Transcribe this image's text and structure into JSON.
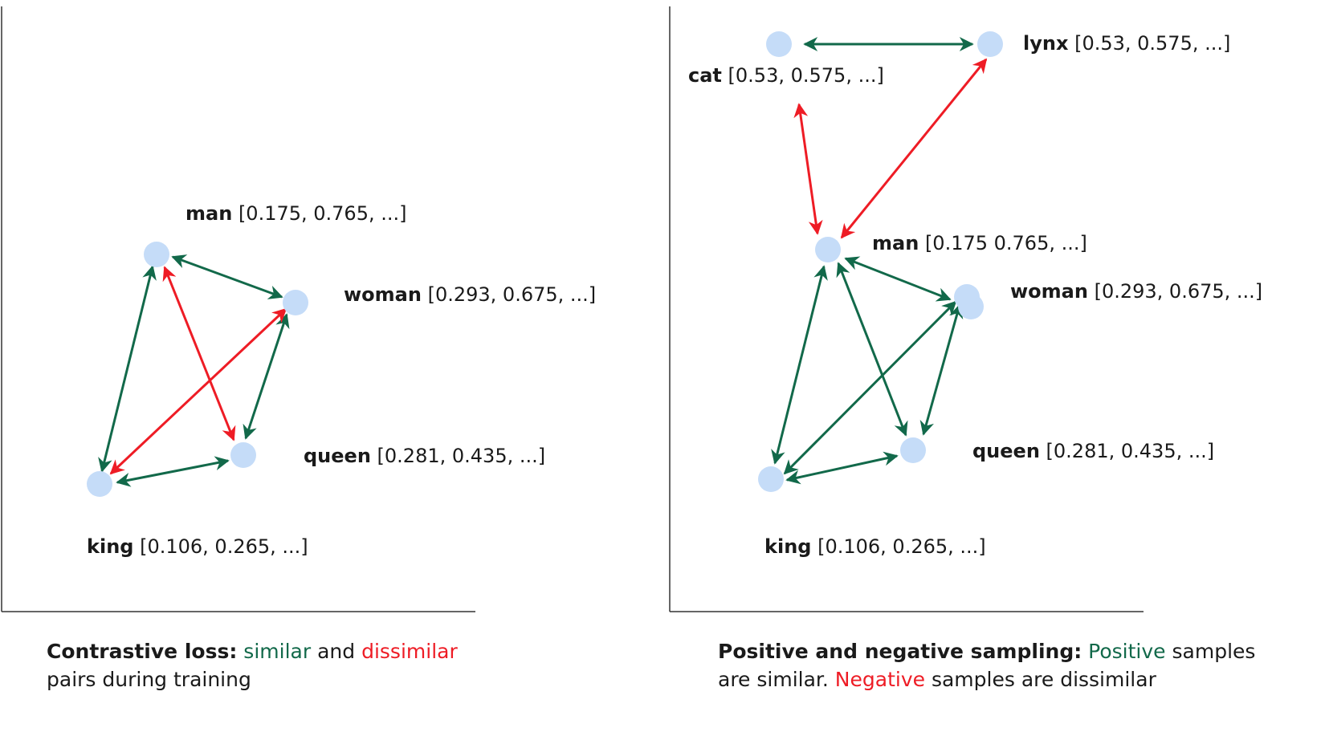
{
  "colors": {
    "similar": "#12694a",
    "dissimilar": "#ee1c25",
    "node": "#c5dcf8",
    "axis": "#333333"
  },
  "left_panel": {
    "nodes": {
      "man": {
        "word": "man",
        "vector": "[0.175, 0.765, ...]"
      },
      "woman": {
        "word": "woman",
        "vector": "[0.293, 0.675, ...]"
      },
      "queen": {
        "word": "queen",
        "vector": "[0.281, 0.435, ...]"
      },
      "king": {
        "word": "king",
        "vector": "[0.106, 0.265, ...]"
      }
    },
    "caption": {
      "lead": "Contrastive loss:",
      "similar": "similar",
      "and": "and",
      "dissimilar": "dissimilar",
      "line2": "pairs during training"
    }
  },
  "right_panel": {
    "nodes": {
      "cat": {
        "word": "cat",
        "vector": "[0.53, 0.575, ...]"
      },
      "lynx": {
        "word": "lynx",
        "vector": "[0.53, 0.575, ...]"
      },
      "man": {
        "word": "man",
        "vector": "[0.175 0.765, ...]"
      },
      "woman": {
        "word": "woman",
        "vector": "[0.293, 0.675, ...]"
      },
      "queen": {
        "word": "queen",
        "vector": "[0.281, 0.435, ...]"
      },
      "king": {
        "word": "king",
        "vector": "[0.106, 0.265, ...]"
      }
    },
    "caption": {
      "lead": "Positive and negative sampling:",
      "positive": "Positive",
      "line1_rest": "samples",
      "line2_start": "are similar.",
      "negative": "Negative",
      "line2_rest": "samples are dissimilar"
    }
  }
}
